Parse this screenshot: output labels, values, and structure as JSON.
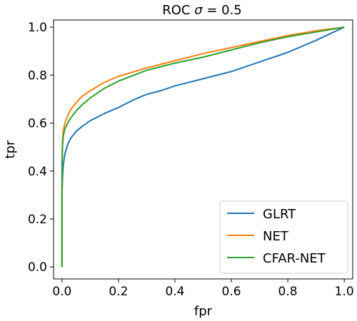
{
  "chart_data": {
    "type": "line",
    "title_prefix": "ROC ",
    "title_sigma": "σ",
    "title_suffix": " = 0.5",
    "xlabel": "fpr",
    "ylabel": "tpr",
    "xlim": [
      -0.03,
      1.03
    ],
    "ylim": [
      -0.05,
      1.03
    ],
    "xticks": [
      0.0,
      0.2,
      0.4,
      0.6,
      0.8,
      1.0
    ],
    "xtick_labels": [
      "0.0",
      "0.2",
      "0.4",
      "0.6",
      "0.8",
      "1.0"
    ],
    "yticks": [
      0.0,
      0.2,
      0.4,
      0.6,
      0.8,
      1.0
    ],
    "ytick_labels": [
      "0.0",
      "0.2",
      "0.4",
      "0.6",
      "0.8",
      "1.0"
    ],
    "grid": false,
    "legend_position": "bottom-right",
    "series": [
      {
        "name": "GLRT",
        "color": "#1f77b4",
        "x": [
          0,
          0,
          0.002,
          0.005,
          0.01,
          0.02,
          0.03,
          0.05,
          0.07,
          0.1,
          0.15,
          0.2,
          0.25,
          0.3,
          0.35,
          0.4,
          0.5,
          0.6,
          0.7,
          0.8,
          0.9,
          1.0
        ],
        "y": [
          0,
          0.3,
          0.38,
          0.43,
          0.47,
          0.51,
          0.535,
          0.565,
          0.585,
          0.61,
          0.64,
          0.665,
          0.695,
          0.72,
          0.735,
          0.755,
          0.785,
          0.815,
          0.855,
          0.895,
          0.945,
          1.0
        ]
      },
      {
        "name": "NET",
        "color": "#ff7f0e",
        "x": [
          0,
          0,
          0.002,
          0.005,
          0.01,
          0.02,
          0.03,
          0.05,
          0.07,
          0.1,
          0.15,
          0.2,
          0.3,
          0.4,
          0.5,
          0.6,
          0.7,
          0.8,
          0.9,
          1.0
        ],
        "y": [
          0,
          0.45,
          0.53,
          0.57,
          0.6,
          0.63,
          0.655,
          0.685,
          0.71,
          0.735,
          0.77,
          0.795,
          0.83,
          0.86,
          0.89,
          0.915,
          0.94,
          0.965,
          0.985,
          1.0
        ]
      },
      {
        "name": "CFAR-NET",
        "color": "#2ca02c",
        "x": [
          0,
          0,
          0.002,
          0.005,
          0.01,
          0.02,
          0.03,
          0.05,
          0.07,
          0.1,
          0.15,
          0.2,
          0.3,
          0.4,
          0.5,
          0.6,
          0.7,
          0.8,
          0.9,
          1.0
        ],
        "y": [
          0,
          0.42,
          0.51,
          0.55,
          0.575,
          0.6,
          0.62,
          0.65,
          0.675,
          0.705,
          0.745,
          0.775,
          0.82,
          0.85,
          0.875,
          0.905,
          0.935,
          0.96,
          0.98,
          1.0
        ]
      }
    ]
  }
}
